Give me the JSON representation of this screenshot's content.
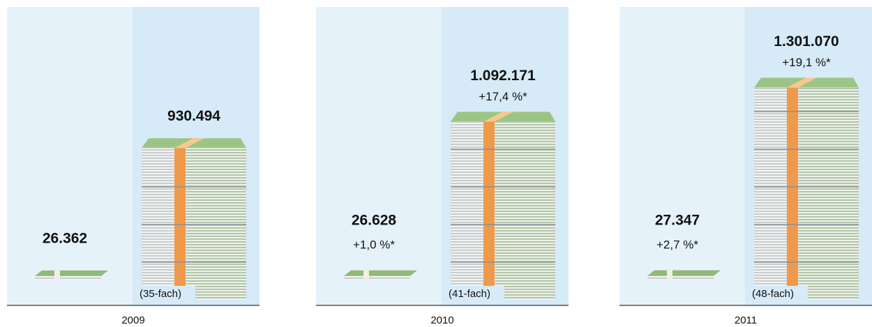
{
  "chart_data": [
    {
      "type": "pictograph",
      "x_label": "2009",
      "values": [
        26362,
        930494
      ],
      "value_labels": [
        "26.362",
        "930.494"
      ],
      "change_labels": [
        null,
        null
      ],
      "annotation": "(35-fach)"
    },
    {
      "type": "pictograph",
      "x_label": "2010",
      "values": [
        26628,
        1092171
      ],
      "value_labels": [
        "26.628",
        "1.092.171"
      ],
      "change_labels": [
        "+1,0 %*",
        "+17,4 %*"
      ],
      "annotation": "(41-fach)"
    },
    {
      "type": "pictograph",
      "x_label": "2011",
      "values": [
        27347,
        1301070
      ],
      "value_labels": [
        "27.347",
        "1.301.070"
      ],
      "change_labels": [
        "+2,7 %*",
        "+19,1 %*"
      ],
      "annotation": "(48-fach)"
    }
  ]
}
